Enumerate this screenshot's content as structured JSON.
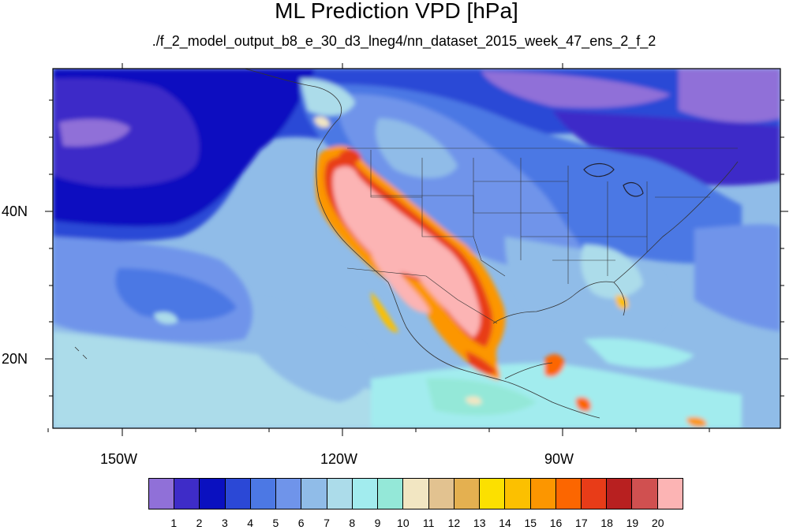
{
  "title": "ML Prediction VPD [hPa]",
  "subtitle": "./f_2_model_output_b8_e_30_d3_lneg4/nn_dataset_2015_week_47_ens_2_f_2",
  "axes": {
    "lat_labels": [
      "40N",
      "20N"
    ],
    "lon_labels": [
      "150W",
      "120W",
      "90W"
    ]
  },
  "legend": {
    "labels": [
      "1",
      "2",
      "3",
      "4",
      "5",
      "6",
      "7",
      "8",
      "9",
      "10",
      "11",
      "12",
      "13",
      "14",
      "15",
      "16",
      "17",
      "18",
      "19",
      "20"
    ],
    "colors": [
      "#9070d8",
      "#3e2cc8",
      "#0a10c0",
      "#2b48d6",
      "#4c78e4",
      "#6f94ea",
      "#90bce8",
      "#acdcea",
      "#a2ecee",
      "#94e8d8",
      "#f2e6c2",
      "#e2c290",
      "#e4b050",
      "#fce000",
      "#fcc000",
      "#fc9600",
      "#fc6600",
      "#e83c18",
      "#b82020",
      "#d05050",
      "#fcb4b4"
    ]
  }
}
